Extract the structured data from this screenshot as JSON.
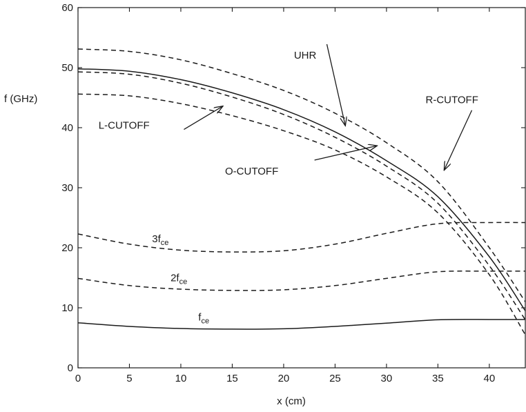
{
  "chart_data": {
    "type": "line",
    "title": "",
    "xlabel": "x (cm)",
    "ylabel": "f (GHz)",
    "xlim": [
      0,
      43.5
    ],
    "ylim": [
      0,
      60
    ],
    "x_ticks": [
      0,
      5,
      10,
      15,
      20,
      25,
      30,
      35,
      40
    ],
    "y_ticks": [
      0,
      10,
      20,
      30,
      40,
      50,
      60
    ],
    "grid": false,
    "legend": "none",
    "series": [
      {
        "name": "R-CUTOFF",
        "style": "dashed",
        "color": "#1a1a1a",
        "x": [
          0,
          5,
          10,
          15,
          20,
          25,
          30,
          35,
          40,
          43.5
        ],
        "y": [
          53.1,
          52.7,
          51.3,
          49.0,
          46.2,
          42.4,
          37.5,
          31.0,
          20.0,
          11.0
        ]
      },
      {
        "name": "UHR",
        "style": "solid",
        "color": "#1a1a1a",
        "x": [
          0,
          5,
          10,
          15,
          20,
          25,
          30,
          35,
          40,
          43.5
        ],
        "y": [
          49.8,
          49.4,
          48.0,
          45.8,
          43.0,
          39.3,
          34.5,
          28.5,
          18.5,
          9.5
        ]
      },
      {
        "name": "O-CUTOFF",
        "style": "dashed",
        "color": "#1a1a1a",
        "x": [
          0,
          5,
          10,
          15,
          20,
          25,
          30,
          35,
          40,
          43.5
        ],
        "y": [
          49.3,
          48.9,
          47.4,
          45.1,
          42.2,
          38.4,
          33.6,
          27.4,
          17.0,
          8.0
        ]
      },
      {
        "name": "L-CUTOFF",
        "style": "dashed",
        "color": "#1a1a1a",
        "x": [
          0,
          5,
          10,
          15,
          20,
          25,
          30,
          35,
          40,
          43.5
        ],
        "y": [
          45.6,
          45.3,
          44.0,
          42.0,
          39.5,
          36.3,
          31.8,
          25.8,
          15.5,
          5.5
        ]
      },
      {
        "name": "3fce",
        "style": "dashed",
        "color": "#1a1a1a",
        "x": [
          0,
          5,
          10,
          15,
          20,
          25,
          30,
          35,
          40,
          43.5
        ],
        "y": [
          22.3,
          20.6,
          19.6,
          19.3,
          19.5,
          20.6,
          22.4,
          24.0,
          24.2,
          24.2
        ]
      },
      {
        "name": "2fce",
        "style": "dashed",
        "color": "#1a1a1a",
        "x": [
          0,
          5,
          10,
          15,
          20,
          25,
          30,
          35,
          40,
          43.5
        ],
        "y": [
          14.9,
          13.7,
          13.1,
          12.9,
          13.0,
          13.7,
          14.9,
          16.0,
          16.1,
          16.1
        ]
      },
      {
        "name": "fce",
        "style": "solid",
        "color": "#1a1a1a",
        "x": [
          0,
          5,
          10,
          15,
          20,
          25,
          30,
          35,
          40,
          43.5
        ],
        "y": [
          7.5,
          6.9,
          6.55,
          6.45,
          6.5,
          6.9,
          7.45,
          8.0,
          8.05,
          8.05
        ]
      }
    ],
    "annotations": [
      {
        "id": "uhr",
        "label": "UHR",
        "at": [
          21,
          51.5
        ],
        "arrow_from": [
          24.2,
          53.9
        ],
        "arrow_to": [
          26,
          40.3
        ]
      },
      {
        "id": "rcut",
        "label": "R-CUTOFF",
        "at": [
          33.8,
          44.1
        ],
        "arrow_from": [
          38.3,
          42.9
        ],
        "arrow_to": [
          35.6,
          32.9
        ]
      },
      {
        "id": "lcut",
        "label": "L-CUTOFF",
        "at": [
          2,
          39.8
        ],
        "arrow_from": [
          10.3,
          39.7
        ],
        "arrow_to": [
          14.1,
          43.6
        ]
      },
      {
        "id": "ocut",
        "label": "O-CUTOFF",
        "at": [
          14.3,
          32.2
        ],
        "arrow_from": [
          23.0,
          34.6
        ],
        "arrow_to": [
          29.1,
          37.0
        ]
      },
      {
        "id": "3fce",
        "label": "3f",
        "subscript": "ce",
        "at": [
          7.2,
          20.9
        ]
      },
      {
        "id": "2fce",
        "label": "2f",
        "subscript": "ce",
        "at": [
          9.0,
          14.4
        ]
      },
      {
        "id": "fce",
        "label": "f",
        "subscript": "ce",
        "at": [
          11.7,
          7.9
        ]
      }
    ]
  }
}
